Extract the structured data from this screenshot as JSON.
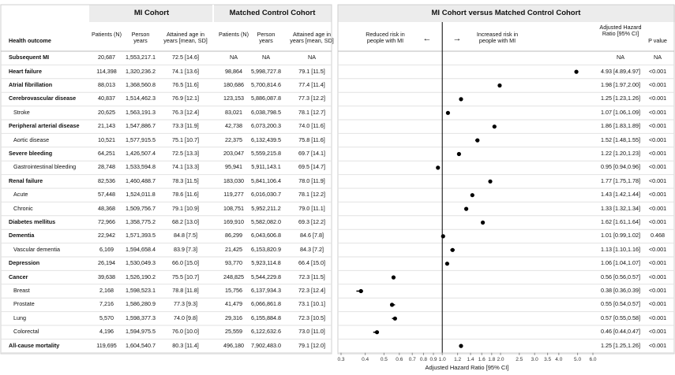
{
  "table": {
    "group_headers": [
      "MI Cohort",
      "Matched Control Cohort"
    ],
    "columns": [
      "Health outcome",
      "Patients (N)",
      "Person years",
      "Attained age in years [mean, SD]",
      "Patients (N)",
      "Person years",
      "Attained age in years [mean, SD]"
    ],
    "rows": [
      [
        "Subsequent MI",
        "20,687",
        "1,553,217.1",
        "72.5 [14.6]",
        "NA",
        "NA",
        "NA"
      ],
      [
        "Heart failure",
        "114,398",
        "1,320,236.2",
        "74.1 [13.6]",
        "98,864",
        "5,998,727.8",
        "79.1 [11.5]"
      ],
      [
        "Atrial fibrillation",
        "88,013",
        "1,368,560.8",
        "76.5 [11.6]",
        "180,686",
        "5,700,814.6",
        "77.4 [11.4]"
      ],
      [
        "Cerebrovascular disease",
        "40,837",
        "1,514,462.3",
        "76.9 [12.1]",
        "123,153",
        "5,886,087.8",
        "77.3 [12.2]"
      ],
      [
        "Stroke",
        "20,625",
        "1,563,191.3",
        "76.3 [12.4]",
        "83,021",
        "6,038,798.5",
        "78.1 [12.7]"
      ],
      [
        "Peripheral arterial disease",
        "21,143",
        "1,547,886.7",
        "73.3 [11.9]",
        "42,738",
        "6,073,200.3",
        "74.0 [11.6]"
      ],
      [
        "Aortic disease",
        "10,521",
        "1,577,915.5",
        "75.1 [10.7]",
        "22,375",
        "6,132,439.5",
        "75.8 [11.6]"
      ],
      [
        "Severe bleeding",
        "64,251",
        "1,426,507.4",
        "72.5 [13.3]",
        "203,047",
        "5,559,215.8",
        "69.7 [14.1]"
      ],
      [
        "Gastrointestinal bleeding",
        "28,748",
        "1,533,594.8",
        "74.1 [13.3]",
        "95,941",
        "5,911,143.1",
        "69.5 [14.7]"
      ],
      [
        "Renal failure",
        "82,536",
        "1,460,488.7",
        "78.3 [11.5]",
        "183,030",
        "5,841,106.4",
        "78.0 [11.9]"
      ],
      [
        "Acute",
        "57,448",
        "1,524,011.8",
        "78.6 [11.6]",
        "119,277",
        "6,016,030.7",
        "78.1 [12.2]"
      ],
      [
        "Chronic",
        "48,368",
        "1,509,756.7",
        "79.1 [10.9]",
        "108,751",
        "5,952,211.2",
        "79.0 [11.1]"
      ],
      [
        "Diabetes mellitus",
        "72,966",
        "1,358,775.2",
        "68.2 [13.0]",
        "169,910",
        "5,582,082.0",
        "69.3 [12.2]"
      ],
      [
        "Dementia",
        "22,942",
        "1,571,393.5",
        "84.8 [7.5]",
        "86,299",
        "6,043,606.8",
        "84.6 [7.8]"
      ],
      [
        "Vascular dementia",
        "6,169",
        "1,594,658.4",
        "83.9 [7.3]",
        "21,425",
        "6,153,820.9",
        "84.3 [7.2]"
      ],
      [
        "Depression",
        "26,194",
        "1,530,049.3",
        "66.0 [15.0]",
        "93,770",
        "5,923,114.8",
        "66.4 [15.0]"
      ],
      [
        "Cancer",
        "39,638",
        "1,526,190.2",
        "75.5 [10.7]",
        "248,825",
        "5,544,229.8",
        "72.3 [11.5]"
      ],
      [
        "Breast",
        "2,168",
        "1,598,523.1",
        "78.8 [11.8]",
        "15,756",
        "6,137,934.3",
        "72.3 [12.4]"
      ],
      [
        "Prostate",
        "7,216",
        "1,586,280.9",
        "77.3 [9.3]",
        "41,479",
        "6,066,861.8",
        "73.1 [10.1]"
      ],
      [
        "Lung",
        "5,570",
        "1,598,377.3",
        "74.0 [9.8]",
        "29,316",
        "6,155,884.8",
        "72.3 [10.5]"
      ],
      [
        "Colorectal",
        "4,196",
        "1,594,975.5",
        "76.0 [10.0]",
        "25,559",
        "6,122,632.6",
        "73.0 [11.0]"
      ],
      [
        "All-cause mortality",
        "119,695",
        "1,604,540.7",
        "80.3 [11.4]",
        "496,180",
        "7,902,483.0",
        "79.1 [12.0]"
      ]
    ]
  },
  "chart_data": {
    "type": "forest",
    "title": "MI Cohort versus Matched Control Cohort",
    "xlabel": "Adjusted Hazard Ratio [95% CI]",
    "value_label_header": "Adjusted Hazard Ratio [95% CI]",
    "p_header": "P value",
    "annotations": [
      "Reduced risk in people with MI",
      "←",
      "→",
      "Increased risk in people with MI"
    ],
    "values": [
      null,
      4.93,
      1.98,
      1.25,
      1.07,
      1.86,
      1.52,
      1.22,
      0.95,
      1.77,
      1.43,
      1.33,
      1.62,
      1.01,
      1.13,
      1.06,
      0.56,
      0.38,
      0.55,
      0.57,
      0.46,
      1.25
    ],
    "lower": [
      null,
      4.89,
      1.97,
      1.23,
      1.06,
      1.83,
      1.48,
      1.2,
      0.94,
      1.75,
      1.42,
      1.32,
      1.61,
      0.99,
      1.1,
      1.04,
      0.56,
      0.36,
      0.54,
      0.55,
      0.44,
      1.25
    ],
    "upper": [
      null,
      4.97,
      2.0,
      1.26,
      1.09,
      1.89,
      1.55,
      1.23,
      0.96,
      1.78,
      1.44,
      1.34,
      1.64,
      1.02,
      1.16,
      1.07,
      0.57,
      0.39,
      0.57,
      0.58,
      0.47,
      1.26
    ],
    "value_labels": [
      "NA",
      "4.93 [4.89,4.97]",
      "1.98 [1.97,2.00]",
      "1.25 [1.23,1.26]",
      "1.07 [1.06,1.09]",
      "1.86 [1.83,1.89]",
      "1.52 [1.48,1.55]",
      "1.22 [1.20,1.23]",
      "0.95 [0.94,0.96]",
      "1.77 [1.75,1.78]",
      "1.43 [1.42,1.44]",
      "1.33 [1.32,1.34]",
      "1.62 [1.61,1.64]",
      "1.01 [0.99,1.02]",
      "1.13 [1.10,1.16]",
      "1.06 [1.04,1.07]",
      "0.56 [0.56,0.57]",
      "0.38 [0.36,0.39]",
      "0.55 [0.54,0.57]",
      "0.57 [0.55,0.58]",
      "0.46 [0.44,0.47]",
      "1.25 [1.25,1.26]"
    ],
    "p_values": [
      "NA",
      "<0.001",
      "<0.001",
      "<0.001",
      "<0.001",
      "<0.001",
      "<0.001",
      "<0.001",
      "<0.001",
      "<0.001",
      "<0.001",
      "<0.001",
      "<0.001",
      "0.468",
      "<0.001",
      "<0.001",
      "<0.001",
      "<0.001",
      "<0.001",
      "<0.001",
      "<0.001",
      "<0.001"
    ],
    "xscale": "log",
    "xlim": [
      0.3,
      6.0
    ],
    "xticks": [
      0.3,
      0.4,
      0.5,
      0.6,
      0.7,
      0.8,
      0.9,
      {
        "value": 1,
        "label": "1.0"
      },
      1.2,
      1.4,
      1.6,
      1.8,
      {
        "value": 2,
        "label": "2.0"
      },
      2.5,
      {
        "value": 3,
        "label": "3.0"
      },
      3.5,
      {
        "value": 4,
        "label": "4.0"
      },
      {
        "value": 5,
        "label": "5.0"
      },
      {
        "value": 6,
        "label": "6.0"
      }
    ],
    "color": "#000000"
  }
}
